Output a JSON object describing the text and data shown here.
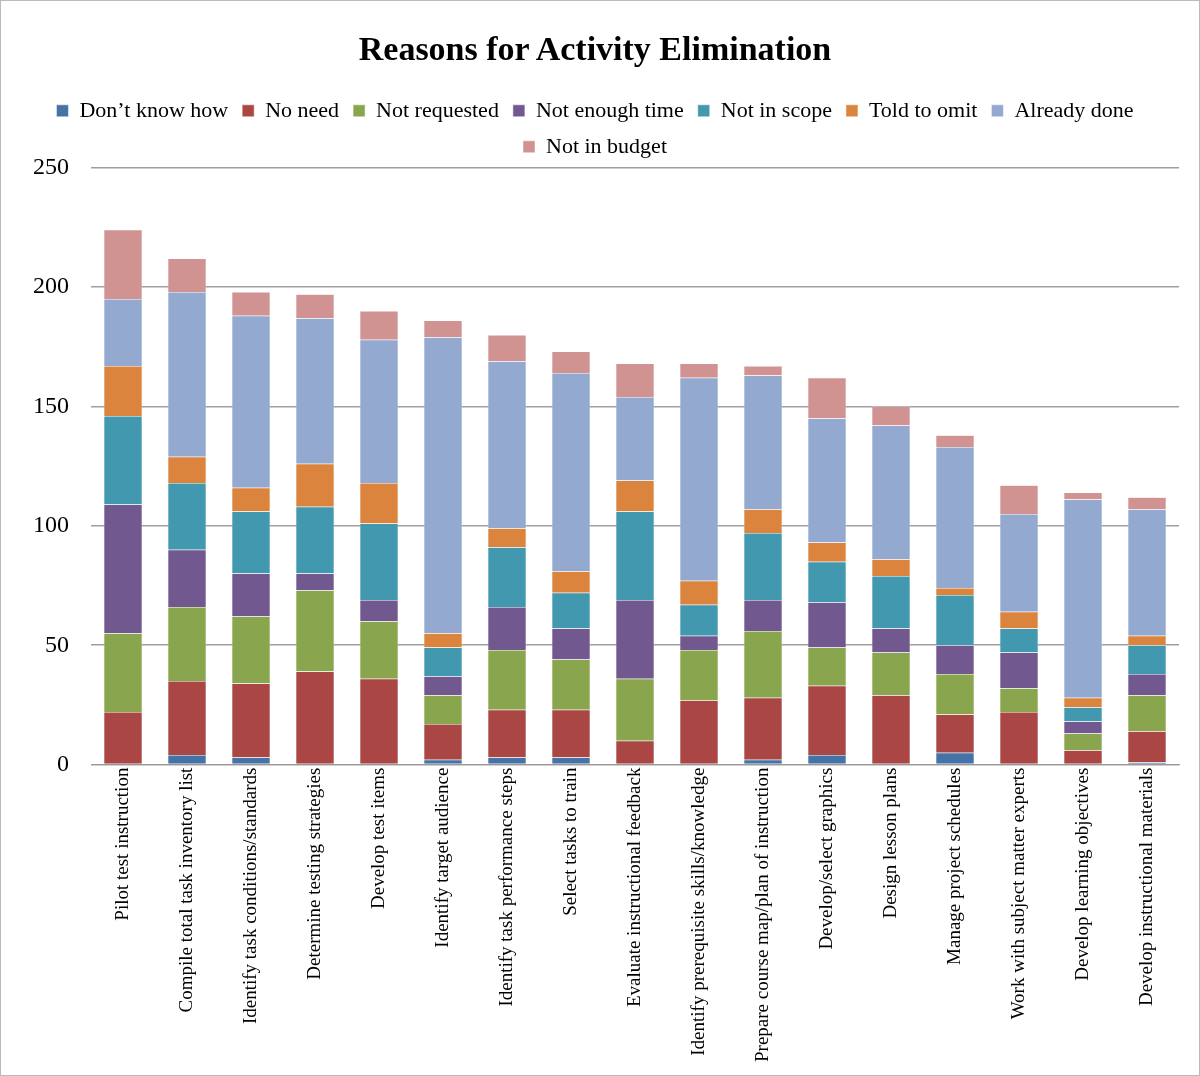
{
  "chart_data": {
    "type": "bar",
    "title": "Reasons for Activity Elimination",
    "stacked": true,
    "grid": "y",
    "legend": "top",
    "categories": [
      "Pilot test instruction",
      "Compile total task inventory list",
      "Identify task conditions/standards",
      "Determine testing strategies",
      "Develop test items",
      "Identify target audience",
      "Identify task performance steps",
      "Select tasks to train",
      "Evaluate instructional feedback",
      "Identify prerequisite skills/knowledge",
      "Prepare course map/plan of instruction",
      "Develop/select graphics",
      "Design lesson plans",
      "Manage project schedules",
      "Work with subject matter experts",
      "Develop learning objectives",
      "Develop instructional materials"
    ],
    "ylim": [
      0,
      250
    ],
    "yticks": [
      0,
      50,
      100,
      150,
      200,
      250
    ],
    "series": [
      {
        "name": "Don’t know how",
        "color": "#4573a7",
        "values": [
          0,
          4,
          3,
          0,
          0,
          2,
          3,
          3,
          0,
          0,
          2,
          4,
          0,
          5,
          0,
          0,
          1
        ]
      },
      {
        "name": "No need",
        "color": "#aa4644",
        "values": [
          22,
          31,
          31,
          39,
          36,
          15,
          20,
          20,
          10,
          27,
          26,
          29,
          29,
          16,
          22,
          6,
          13
        ]
      },
      {
        "name": "Not requested",
        "color": "#89a54e",
        "values": [
          33,
          31,
          28,
          34,
          24,
          12,
          25,
          21,
          26,
          21,
          28,
          16,
          18,
          17,
          10,
          7,
          15
        ]
      },
      {
        "name": "Not enough time",
        "color": "#71588f",
        "values": [
          54,
          24,
          18,
          7,
          9,
          8,
          18,
          13,
          33,
          6,
          13,
          19,
          10,
          12,
          15,
          5,
          9
        ]
      },
      {
        "name": "Not in scope",
        "color": "#4198af",
        "values": [
          37,
          28,
          26,
          28,
          32,
          12,
          25,
          15,
          37,
          13,
          28,
          17,
          22,
          21,
          10,
          6,
          12
        ]
      },
      {
        "name": "Told to omit",
        "color": "#db843d",
        "values": [
          21,
          11,
          10,
          18,
          17,
          6,
          8,
          9,
          13,
          10,
          10,
          8,
          7,
          3,
          7,
          4,
          4
        ]
      },
      {
        "name": "Already done",
        "color": "#93a9cf",
        "values": [
          28,
          69,
          72,
          61,
          60,
          124,
          70,
          83,
          35,
          85,
          56,
          52,
          56,
          59,
          41,
          83,
          53
        ]
      },
      {
        "name": "Not in budget",
        "color": "#d19392",
        "values": [
          29,
          14,
          10,
          10,
          12,
          7,
          11,
          9,
          14,
          6,
          4,
          17,
          8,
          5,
          12,
          3,
          5
        ]
      }
    ]
  }
}
